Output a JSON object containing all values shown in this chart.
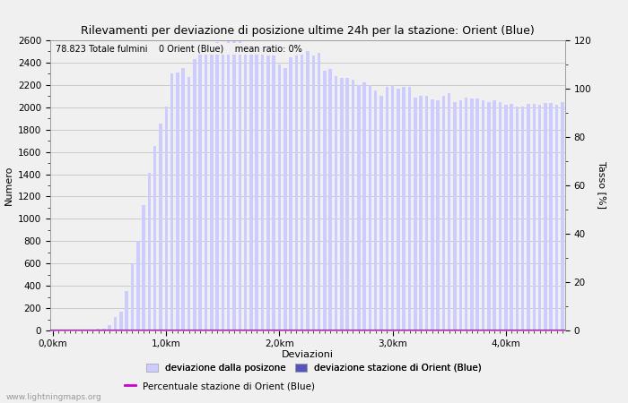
{
  "title": "Rilevamenti per deviazione di posizione ultime 24h per la stazione: Orient (Blue)",
  "xlabel": "Deviazioni",
  "ylabel_left": "Numero",
  "ylabel_right": "Tasso [%]",
  "annotation": "78.823 Totale fulmini    0 Orient (Blue)    mean ratio: 0%",
  "watermark": "www.lightningmaps.org",
  "bar_color_light": "#ccccff",
  "bar_color_dark": "#5555bb",
  "line_color": "#cc00cc",
  "bg_color": "#f0f0f0",
  "plot_bg_color": "#f0f0f0",
  "ylim_left": [
    0,
    2600
  ],
  "ylim_right": [
    0,
    120
  ],
  "x_tick_labels": [
    "0,0km",
    "1,0km",
    "2,0km",
    "3,0km",
    "4,0km"
  ],
  "x_tick_positions": [
    0,
    20,
    40,
    60,
    80
  ],
  "n_bars": 91,
  "bar_heights": [
    0,
    0,
    0,
    0,
    0,
    0,
    5,
    10,
    15,
    20,
    50,
    120,
    170,
    350,
    600,
    800,
    1120,
    1410,
    1650,
    1850,
    2010,
    2300,
    2310,
    2350,
    2270,
    2430,
    2470,
    2480,
    2500,
    2580,
    2570,
    2600,
    2600,
    2590,
    2560,
    2490,
    2480,
    2490,
    2460,
    2460,
    2380,
    2350,
    2450,
    2460,
    2470,
    2500,
    2460,
    2490,
    2330,
    2340,
    2280,
    2260,
    2260,
    2250,
    2200,
    2220,
    2200,
    2150,
    2100,
    2180,
    2200,
    2170,
    2180,
    2180,
    2090,
    2100,
    2100,
    2070,
    2060,
    2100,
    2130,
    2050,
    2060,
    2090,
    2080,
    2080,
    2060,
    2050,
    2060,
    2050,
    2020,
    2030,
    2010,
    2010,
    2030,
    2030,
    2020,
    2040,
    2040,
    2020,
    2050
  ],
  "station_bar_heights": [
    0,
    0,
    0,
    0,
    0,
    0,
    0,
    0,
    0,
    0,
    0,
    0,
    0,
    0,
    0,
    0,
    0,
    0,
    0,
    0,
    0,
    0,
    0,
    0,
    0,
    0,
    0,
    0,
    0,
    0,
    0,
    0,
    0,
    0,
    0,
    0,
    0,
    0,
    0,
    0,
    0,
    0,
    0,
    0,
    0,
    0,
    0,
    0,
    0,
    0,
    0,
    0,
    0,
    0,
    0,
    0,
    0,
    0,
    0,
    0,
    0,
    0,
    0,
    0,
    0,
    0,
    0,
    0,
    0,
    0,
    0,
    0,
    0,
    0,
    0,
    0,
    0,
    0,
    0,
    0,
    0,
    0,
    0,
    0,
    0,
    0,
    0,
    0,
    0,
    0,
    0
  ],
  "legend_label_light": "deviazione dalla posizone",
  "legend_label_dark": "deviazione stazione di Orient (Blue)",
  "legend_label_line": "Percentuale stazione di Orient (Blue)",
  "title_fontsize": 9,
  "axis_fontsize": 8,
  "tick_fontsize": 7.5,
  "legend_fontsize": 7.5
}
